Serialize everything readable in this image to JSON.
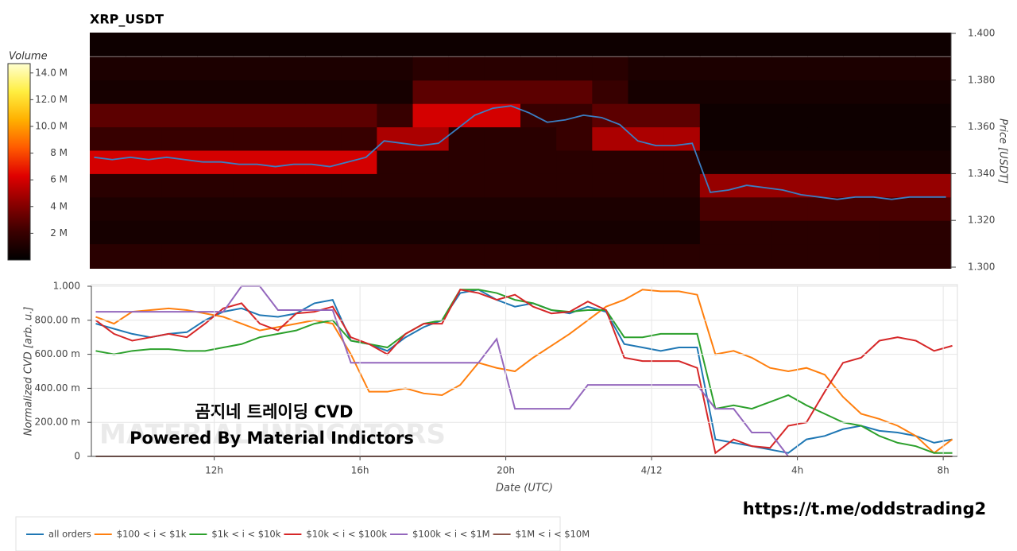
{
  "chart_data": [
    {
      "type": "heatmap",
      "title": "XRP_USDT",
      "ylabel": "Price [USDT]",
      "xlim": [
        8.63,
        32.39
      ],
      "ylim": [
        1.3,
        1.4
      ],
      "yticks": [
        {
          "value": 1.3,
          "label": "1.300"
        },
        {
          "value": 1.32,
          "label": "1.320"
        },
        {
          "value": 1.34,
          "label": "1.340"
        },
        {
          "value": 1.36,
          "label": "1.360"
        },
        {
          "value": 1.38,
          "label": "1.380"
        },
        {
          "value": 1.4,
          "label": "1.400"
        }
      ],
      "colorbar": {
        "title": "Volume",
        "lim": [
          0,
          14.7
        ],
        "ticks": [
          {
            "value": 2,
            "label": "2 M"
          },
          {
            "value": 4,
            "label": "4 M"
          },
          {
            "value": 6,
            "label": "6 M"
          },
          {
            "value": 8,
            "label": "8 M"
          },
          {
            "value": 10,
            "label": "10.0 M"
          },
          {
            "value": 12,
            "label": "12.0 M"
          },
          {
            "value": 14,
            "label": "14.0 M"
          }
        ],
        "colorscale": [
          "#000000",
          "#3a0000",
          "#8a0000",
          "#e00000",
          "#ff5a00",
          "#ffb000",
          "#ffee40",
          "#ffffd0"
        ]
      },
      "time_bins": [
        8.63,
        9.62,
        10.61,
        11.6,
        12.59,
        13.58,
        14.57,
        15.56,
        16.55,
        17.54,
        18.53,
        19.52,
        20.51,
        21.5,
        22.49,
        23.48,
        24.47,
        25.46,
        26.45,
        27.44,
        28.43,
        29.42,
        30.41,
        31.4,
        32.39
      ],
      "price_bins": [
        1.3,
        1.31,
        1.32,
        1.33,
        1.34,
        1.35,
        1.36,
        1.37,
        1.38,
        1.39,
        1.4
      ],
      "z": [
        [
          1.5,
          1.5,
          1.5,
          1.5,
          1.5,
          1.5,
          1.5,
          1.5,
          1.5,
          1.5,
          1.5,
          1.5,
          1.5,
          1.5,
          1.5,
          1.5,
          1.5,
          1.5,
          1.5,
          1.5,
          1.5,
          1.5,
          1.5,
          1.5
        ],
        [
          0.8,
          0.8,
          0.8,
          0.8,
          0.8,
          0.8,
          0.8,
          0.8,
          0.8,
          0.8,
          0.8,
          0.8,
          0.8,
          0.8,
          0.8,
          0.8,
          0.8,
          1.5,
          1.5,
          1.5,
          1.5,
          1.5,
          1.5,
          1.5
        ],
        [
          1,
          1,
          1,
          1,
          1,
          1,
          1,
          1,
          1,
          1,
          1,
          1,
          1,
          1,
          1,
          1,
          1,
          2.5,
          2.5,
          2.5,
          2.5,
          2.5,
          2.5,
          2.5
        ],
        [
          1.5,
          1.5,
          1.5,
          1.5,
          1.5,
          1.5,
          1.5,
          1.5,
          1.5,
          1.5,
          1.5,
          1.5,
          1.5,
          1.5,
          1.5,
          1.5,
          1.5,
          4.5,
          4.5,
          4.5,
          4.5,
          4.5,
          4.5,
          4.5
        ],
        [
          6,
          6,
          6,
          6,
          6,
          6,
          6,
          6,
          1.5,
          1.5,
          1.5,
          1.5,
          1.5,
          1.5,
          1.5,
          1.5,
          1.5,
          0.8,
          0.8,
          0.8,
          0.8,
          0.8,
          0.8,
          0.8
        ],
        [
          2,
          2,
          2,
          2,
          2,
          2,
          2,
          2,
          5,
          5,
          1.5,
          1.5,
          1.5,
          2,
          5,
          5,
          5,
          0.5,
          0.5,
          0.5,
          0.5,
          0.5,
          0.5,
          0.5
        ],
        [
          3,
          3,
          3,
          3,
          3,
          3,
          3,
          3,
          2,
          6,
          6,
          6,
          2,
          2,
          3,
          3,
          3,
          0.5,
          0.5,
          0.5,
          0.5,
          0.5,
          0.5,
          0.5
        ],
        [
          0.8,
          0.8,
          0.8,
          0.8,
          0.8,
          0.8,
          0.8,
          0.8,
          0.8,
          3,
          3,
          3,
          3,
          3,
          2,
          0.8,
          0.8,
          0.8,
          0.8,
          0.8,
          0.8,
          0.8,
          0.8,
          0.8
        ],
        [
          1,
          1,
          1,
          1,
          1,
          1,
          1,
          1,
          1,
          1.5,
          1.5,
          1.5,
          1.5,
          1.5,
          1.5,
          1,
          1,
          1,
          1,
          1,
          1,
          1,
          1,
          1
        ],
        [
          0.5,
          0.5,
          0.5,
          0.5,
          0.5,
          0.5,
          0.5,
          0.5,
          0.5,
          0.5,
          0.5,
          0.5,
          0.5,
          0.5,
          0.5,
          0.5,
          0.5,
          0.5,
          0.5,
          0.5,
          0.5,
          0.5,
          0.5,
          0.5
        ]
      ],
      "x": [
        8.75,
        9.25,
        9.75,
        10.25,
        10.75,
        11.25,
        11.75,
        12.25,
        12.75,
        13.25,
        13.75,
        14.25,
        14.75,
        15.25,
        15.75,
        16.25,
        16.75,
        17.25,
        17.75,
        18.25,
        18.75,
        19.25,
        19.75,
        20.25,
        20.75,
        21.25,
        21.75,
        22.25,
        22.75,
        23.25,
        23.75,
        24.25,
        24.75,
        25.25,
        25.75,
        26.25,
        26.75,
        27.25,
        27.75,
        28.25,
        28.75,
        29.25,
        29.75,
        30.25,
        30.75,
        31.25,
        31.75,
        32.25
      ],
      "line": {
        "color": "#3a7fc4",
        "values": [
          1.347,
          1.346,
          1.347,
          1.346,
          1.347,
          1.346,
          1.345,
          1.345,
          1.344,
          1.344,
          1.343,
          1.344,
          1.344,
          1.343,
          1.345,
          1.347,
          1.354,
          1.353,
          1.352,
          1.353,
          1.359,
          1.365,
          1.368,
          1.369,
          1.366,
          1.362,
          1.363,
          1.365,
          1.364,
          1.361,
          1.354,
          1.352,
          1.352,
          1.353,
          1.332,
          1.333,
          1.335,
          1.334,
          1.333,
          1.331,
          1.33,
          1.329,
          1.33,
          1.33,
          1.329,
          1.33,
          1.33,
          1.33
        ]
      }
    },
    {
      "type": "line",
      "xlabel": "Date (UTC)",
      "ylabel": "Normalized CVD [arb. u.]",
      "grid": true,
      "xlim": [
        8.63,
        32.39
      ],
      "ylim": [
        0,
        1
      ],
      "xticks": [
        {
          "value": 12,
          "label": "12h"
        },
        {
          "value": 16,
          "label": "16h"
        },
        {
          "value": 20,
          "label": "20h"
        },
        {
          "value": 24,
          "label": "4/12"
        },
        {
          "value": 28,
          "label": "4h"
        },
        {
          "value": 32,
          "label": "8h"
        }
      ],
      "yticks": [
        0,
        {
          "value": 0.2,
          "label": "200.00 m"
        },
        {
          "value": 0.4,
          "label": "400.00 m"
        },
        {
          "value": 0.6,
          "label": "600.00 m"
        },
        {
          "value": 0.8,
          "label": "800.00 m"
        },
        {
          "value": 1,
          "label": "1.000"
        }
      ],
      "x": [
        8.75,
        9.25,
        9.75,
        10.25,
        10.75,
        11.25,
        11.75,
        12.25,
        12.75,
        13.25,
        13.75,
        14.25,
        14.75,
        15.25,
        15.75,
        16.25,
        16.75,
        17.25,
        17.75,
        18.25,
        18.75,
        19.25,
        19.75,
        20.25,
        20.75,
        21.25,
        21.75,
        22.25,
        22.75,
        23.25,
        23.75,
        24.25,
        24.75,
        25.25,
        25.75,
        26.25,
        26.75,
        27.25,
        27.75,
        28.25,
        28.75,
        29.25,
        29.75,
        30.25,
        30.75,
        31.25,
        31.75,
        32.25
      ],
      "series": [
        {
          "name": "all orders",
          "color": "#1f77b4",
          "values": [
            0.78,
            0.75,
            0.72,
            0.7,
            0.72,
            0.73,
            0.8,
            0.85,
            0.87,
            0.83,
            0.82,
            0.84,
            0.9,
            0.92,
            0.68,
            0.66,
            0.62,
            0.7,
            0.76,
            0.8,
            0.96,
            0.98,
            0.92,
            0.88,
            0.9,
            0.86,
            0.84,
            0.88,
            0.85,
            0.66,
            0.64,
            0.62,
            0.64,
            0.64,
            0.1,
            0.08,
            0.06,
            0.04,
            0.02,
            0.1,
            0.12,
            0.16,
            0.18,
            0.15,
            0.14,
            0.12,
            0.08,
            0.1
          ]
        },
        {
          "name": "$100 < i < $1k",
          "color": "#ff7f0e",
          "values": [
            0.82,
            0.78,
            0.85,
            0.86,
            0.87,
            0.86,
            0.84,
            0.82,
            0.78,
            0.74,
            0.76,
            0.78,
            0.8,
            0.78,
            0.6,
            0.38,
            0.38,
            0.4,
            0.37,
            0.36,
            0.42,
            0.55,
            0.52,
            0.5,
            0.58,
            0.65,
            0.72,
            0.8,
            0.88,
            0.92,
            0.98,
            0.97,
            0.97,
            0.95,
            0.6,
            0.62,
            0.58,
            0.52,
            0.5,
            0.52,
            0.48,
            0.35,
            0.25,
            0.22,
            0.18,
            0.12,
            0.02,
            0.1
          ]
        },
        {
          "name": "$1k < i < $10k",
          "color": "#2ca02c",
          "values": [
            0.62,
            0.6,
            0.62,
            0.63,
            0.63,
            0.62,
            0.62,
            0.64,
            0.66,
            0.7,
            0.72,
            0.74,
            0.78,
            0.8,
            0.68,
            0.66,
            0.64,
            0.72,
            0.78,
            0.8,
            0.98,
            0.98,
            0.96,
            0.92,
            0.9,
            0.86,
            0.85,
            0.86,
            0.86,
            0.7,
            0.7,
            0.72,
            0.72,
            0.72,
            0.28,
            0.3,
            0.28,
            0.32,
            0.36,
            0.3,
            0.25,
            0.2,
            0.18,
            0.12,
            0.08,
            0.06,
            0.02,
            0.02
          ]
        },
        {
          "name": "$10k < i < $100k",
          "color": "#d62728",
          "values": [
            0.8,
            0.72,
            0.68,
            0.7,
            0.72,
            0.7,
            0.78,
            0.87,
            0.9,
            0.78,
            0.74,
            0.84,
            0.85,
            0.88,
            0.7,
            0.66,
            0.6,
            0.72,
            0.78,
            0.78,
            0.98,
            0.96,
            0.92,
            0.95,
            0.88,
            0.84,
            0.85,
            0.91,
            0.86,
            0.58,
            0.56,
            0.56,
            0.56,
            0.52,
            0.02,
            0.1,
            0.06,
            0.05,
            0.18,
            0.2,
            0.38,
            0.55,
            0.58,
            0.68,
            0.7,
            0.68,
            0.62,
            0.65
          ]
        },
        {
          "name": "$100k < i < $1M",
          "color": "#9467bd",
          "values": [
            0.85,
            0.85,
            0.85,
            0.85,
            0.85,
            0.85,
            0.85,
            0.85,
            1.0,
            1.0,
            0.86,
            0.86,
            0.86,
            0.86,
            0.55,
            0.55,
            0.55,
            0.55,
            0.55,
            0.55,
            0.55,
            0.55,
            0.69,
            0.28,
            0.28,
            0.28,
            0.28,
            0.42,
            0.42,
            0.42,
            0.42,
            0.42,
            0.42,
            0.42,
            0.28,
            0.28,
            0.14,
            0.14,
            0,
            0,
            0,
            0,
            0,
            0,
            0,
            0,
            0,
            0
          ]
        },
        {
          "name": "$1M < i < $10M",
          "color": "#8c564b",
          "values": [
            0,
            0,
            0,
            0,
            0,
            0,
            0,
            0,
            0,
            0,
            0,
            0,
            0,
            0,
            0,
            0,
            0,
            0,
            0,
            0,
            0,
            0,
            0,
            0,
            0,
            0,
            0,
            0,
            0,
            0,
            0,
            0,
            0,
            0,
            0,
            0,
            0,
            0,
            0,
            0,
            0,
            0,
            0,
            0,
            0,
            0,
            0,
            0
          ]
        }
      ]
    }
  ],
  "annotations": {
    "watermark_logo": "MATERIAL INDICATORS",
    "watermark_title": "곰지네 트레이딩 CVD",
    "watermark_subtitle": "Powered By Material Indictors",
    "link": "https://t.me/oddstrading2"
  }
}
